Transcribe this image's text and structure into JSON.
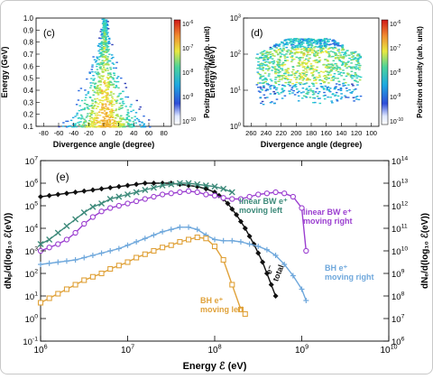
{
  "figure": {
    "panels": [
      {
        "id": "c",
        "panel_label": "(c)",
        "xlabel": "Divergence angle (degree)",
        "ylabel": "Energy (GeV)",
        "colorbar_label": "Positron density (arb. unit)",
        "x_ticks": [
          "-80",
          "-60",
          "-40",
          "-20",
          "0",
          "20",
          "40",
          "60",
          "80"
        ],
        "y_ticks": [
          "0.1",
          "0.2",
          "0.3",
          "0.4",
          "0.5",
          "0.6",
          "0.7",
          "0.8",
          "0.9",
          "1.0"
        ],
        "colorbar_ticks": [
          "10^-6",
          "10^-7",
          "10^-8",
          "10^-9",
          "10^-10"
        ]
      },
      {
        "id": "d",
        "panel_label": "(d)",
        "xlabel": "Divergence angle (degree)",
        "ylabel": "Energy (MeV)",
        "colorbar_label": "Positron density (arb. unit)",
        "x_ticks": [
          "260",
          "240",
          "220",
          "200",
          "180",
          "160",
          "140",
          "120",
          "100"
        ],
        "y_ticks": [
          "10^0",
          "10^1",
          "10^2",
          "10^3"
        ],
        "colorbar_ticks": [
          "10^-6",
          "10^-7",
          "10^-8",
          "10^-9",
          "10^-10"
        ]
      }
    ]
  },
  "chart_data": [
    {
      "type": "heatmap",
      "panel": "(c)",
      "title": "",
      "xlabel": "Divergence angle (degree)",
      "ylabel": "Energy (GeV)",
      "xlim": [
        -90,
        90
      ],
      "ylim": [
        0.1,
        1.0
      ],
      "colorbar": {
        "label": "Positron density (arb. unit)",
        "scale": "log",
        "range": [
          1e-10,
          1e-06
        ]
      },
      "description_points": {
        "center_x": 0,
        "max_energy_at_center": 1.0,
        "width_at_0_1GeV": 80
      }
    },
    {
      "type": "heatmap",
      "panel": "(d)",
      "title": "",
      "xlabel": "Divergence angle (degree)",
      "ylabel": "Energy (MeV)",
      "xlim": [
        270,
        90
      ],
      "ylim": [
        1,
        1000
      ],
      "y_scale": "log",
      "colorbar": {
        "label": "Positron density (arb. unit)",
        "scale": "log",
        "range": [
          1e-10,
          1e-06
        ]
      },
      "description_points": {
        "center_x": 185,
        "max_energy_MeV": 300
      }
    },
    {
      "type": "line",
      "panel": "(e)",
      "panel_label": "(e)",
      "title": "",
      "xlabel": "Energy ℰ (eV)",
      "ylabel_left": "dNₚ/d(log₁₀ ℰ(eV))",
      "ylabel_right": "dNₑ/d(log₁₀ ℰ(eV))",
      "x_scale": "log",
      "xlim": [
        1000000.0,
        10000000000.0
      ],
      "ylim_left": [
        0.1,
        10000000.0
      ],
      "ylim_right": [
        1000000.0,
        100000000000000.0
      ],
      "x_ticks": [
        "10^6",
        "10^7",
        "10^8",
        "10^9",
        "10^10"
      ],
      "y_ticks_left": [
        "10^-1",
        "10^0",
        "10^1",
        "10^2",
        "10^3",
        "10^4",
        "10^5",
        "10^6",
        "10^7"
      ],
      "y_ticks_right": [
        "10^6",
        "10^7",
        "10^8",
        "10^9",
        "10^10",
        "10^11",
        "10^12",
        "10^13",
        "10^14"
      ],
      "series": [
        {
          "name": "e⁻ total",
          "label_lines": [
            "e⁻",
            "total"
          ],
          "axis": "right",
          "color": "#111111",
          "marker": "diamond",
          "x_log": [
            6.0,
            6.1,
            6.2,
            6.3,
            6.4,
            6.5,
            6.6,
            6.7,
            6.8,
            6.9,
            7.0,
            7.1,
            7.2,
            7.3,
            7.4,
            7.5,
            7.6,
            7.7,
            7.8,
            7.9,
            8.0,
            8.05,
            8.1,
            8.15,
            8.2,
            8.25,
            8.3,
            8.35,
            8.4,
            8.45,
            8.5,
            8.55,
            8.6,
            8.65,
            8.7
          ],
          "y_log": [
            12.4,
            12.45,
            12.5,
            12.55,
            12.6,
            12.65,
            12.7,
            12.75,
            12.8,
            12.85,
            12.9,
            12.95,
            13.0,
            13.0,
            13.0,
            13.0,
            12.95,
            12.9,
            12.85,
            12.75,
            12.6,
            12.45,
            12.3,
            12.1,
            11.85,
            11.6,
            11.3,
            11.0,
            10.65,
            10.3,
            9.9,
            9.5,
            9.0,
            8.5,
            8.0
          ]
        },
        {
          "name": "linear BW e⁺ moving left",
          "label_lines": [
            "linear BW e⁺",
            "moving left"
          ],
          "axis": "left",
          "color": "#3d8a7a",
          "marker": "x",
          "x_log": [
            6.0,
            6.1,
            6.2,
            6.3,
            6.4,
            6.5,
            6.6,
            6.7,
            6.8,
            6.9,
            7.0,
            7.1,
            7.2,
            7.3,
            7.4,
            7.5,
            7.6,
            7.7,
            7.8,
            7.9,
            8.0,
            8.1,
            8.2
          ],
          "y_log": [
            3.3,
            3.5,
            3.8,
            4.1,
            4.4,
            4.7,
            4.95,
            5.1,
            5.3,
            5.4,
            5.5,
            5.6,
            5.7,
            5.8,
            5.9,
            5.95,
            6.0,
            6.0,
            5.95,
            5.9,
            5.85,
            5.75,
            5.6
          ]
        },
        {
          "name": "linear BW e⁺ moving right",
          "label_lines": [
            "linear BW e⁺",
            "moving right"
          ],
          "axis": "left",
          "color": "#9b3fd0",
          "marker": "circle",
          "x_log": [
            6.0,
            6.1,
            6.2,
            6.3,
            6.4,
            6.5,
            6.6,
            6.7,
            6.8,
            6.9,
            7.0,
            7.1,
            7.2,
            7.3,
            7.4,
            7.5,
            7.6,
            7.7,
            7.8,
            7.9,
            8.0,
            8.1,
            8.2,
            8.3,
            8.4,
            8.5,
            8.6,
            8.7,
            8.8,
            8.9,
            9.0,
            9.05
          ],
          "y_log": [
            3.0,
            3.15,
            3.3,
            3.5,
            3.8,
            4.2,
            4.5,
            4.75,
            4.9,
            5.0,
            5.1,
            5.2,
            5.3,
            5.4,
            5.5,
            5.55,
            5.6,
            5.65,
            5.6,
            5.5,
            5.45,
            5.35,
            5.3,
            5.3,
            5.4,
            5.5,
            5.55,
            5.6,
            5.55,
            5.4,
            4.9,
            3.0
          ]
        },
        {
          "name": "BH e⁺ moving right",
          "label_lines": [
            "BH e⁺",
            "moving right"
          ],
          "axis": "left",
          "color": "#6fa8dc",
          "marker": "plus",
          "x_log": [
            6.0,
            6.1,
            6.2,
            6.3,
            6.4,
            6.5,
            6.6,
            6.7,
            6.8,
            6.9,
            7.0,
            7.1,
            7.2,
            7.3,
            7.4,
            7.5,
            7.6,
            7.7,
            7.8,
            7.9,
            8.0,
            8.1,
            8.2,
            8.3,
            8.4,
            8.5,
            8.6,
            8.7,
            8.8,
            8.9,
            9.0,
            9.05
          ],
          "y_log": [
            2.4,
            2.45,
            2.5,
            2.55,
            2.6,
            2.7,
            2.8,
            2.9,
            3.0,
            3.1,
            3.25,
            3.4,
            3.55,
            3.7,
            3.85,
            3.95,
            4.05,
            4.05,
            3.95,
            3.7,
            3.5,
            3.45,
            3.45,
            3.4,
            3.3,
            3.2,
            3.05,
            2.8,
            2.4,
            1.9,
            1.3,
            0.8
          ]
        },
        {
          "name": "BH e⁺ moving left",
          "label_lines": [
            "BH e⁺",
            "moving left"
          ],
          "axis": "left",
          "color": "#e0a23a",
          "marker": "square",
          "x_log": [
            6.0,
            6.1,
            6.2,
            6.3,
            6.4,
            6.5,
            6.6,
            6.7,
            6.8,
            6.9,
            7.0,
            7.1,
            7.2,
            7.3,
            7.4,
            7.5,
            7.6,
            7.7,
            7.8,
            7.9,
            8.0,
            8.1,
            8.2,
            8.3,
            8.35
          ],
          "y_log": [
            0.7,
            0.9,
            1.1,
            1.3,
            1.5,
            1.7,
            1.85,
            2.0,
            2.2,
            2.35,
            2.5,
            2.7,
            2.85,
            3.0,
            3.15,
            3.25,
            3.4,
            3.5,
            3.6,
            3.55,
            3.2,
            2.6,
            1.5,
            0.4,
            0.2
          ]
        }
      ]
    }
  ]
}
